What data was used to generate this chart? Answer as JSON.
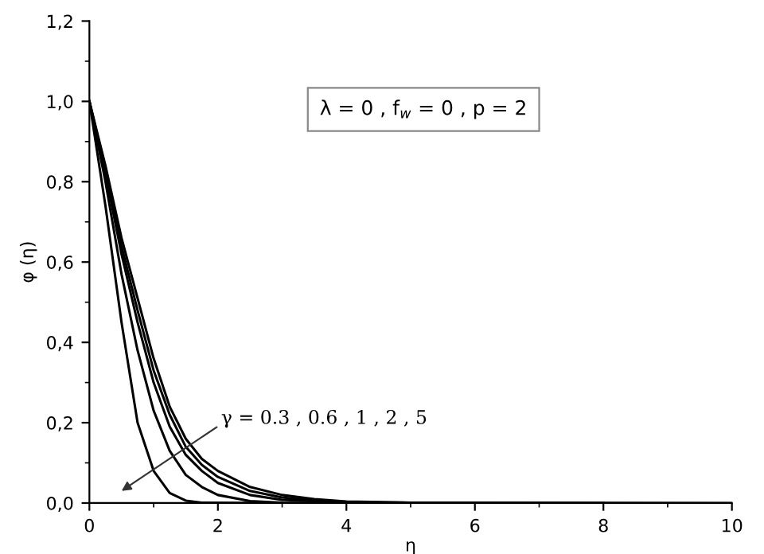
{
  "chart_data": {
    "type": "line",
    "xlabel": "η",
    "ylabel": "φ (η)",
    "series": [
      {
        "color": "#000000",
        "x": [
          0,
          0.25,
          0.5,
          0.75,
          1,
          1.25,
          1.5,
          1.75,
          2,
          2.5,
          3,
          3.5,
          4,
          5,
          10
        ],
        "values": [
          1,
          0.84,
          0.66,
          0.51,
          0.36,
          0.24,
          0.16,
          0.11,
          0.08,
          0.04,
          0.02,
          0.01,
          0.004,
          0.001,
          0
        ]
      },
      {
        "color": "#000000",
        "x": [
          0,
          0.25,
          0.5,
          0.75,
          1,
          1.25,
          1.5,
          1.75,
          2,
          2.5,
          3,
          3.5,
          4,
          5,
          8
        ],
        "values": [
          1,
          0.83,
          0.64,
          0.48,
          0.33,
          0.22,
          0.14,
          0.095,
          0.065,
          0.03,
          0.014,
          0.006,
          0.002,
          0.001,
          0
        ]
      },
      {
        "color": "#000000",
        "x": [
          0,
          0.25,
          0.5,
          0.75,
          1,
          1.25,
          1.5,
          1.75,
          2,
          2.5,
          3,
          4,
          6
        ],
        "values": [
          1,
          0.82,
          0.62,
          0.45,
          0.3,
          0.19,
          0.12,
          0.08,
          0.05,
          0.02,
          0.008,
          0.001,
          0
        ]
      },
      {
        "color": "#000000",
        "x": [
          0,
          0.25,
          0.5,
          0.75,
          1,
          1.25,
          1.5,
          1.75,
          2,
          2.5,
          3,
          4.5
        ],
        "values": [
          1,
          0.8,
          0.57,
          0.38,
          0.23,
          0.13,
          0.07,
          0.04,
          0.02,
          0.005,
          0.001,
          0
        ]
      },
      {
        "color": "#000000",
        "x": [
          0,
          0.25,
          0.5,
          0.75,
          1,
          1.25,
          1.5,
          1.75,
          3
        ],
        "values": [
          1,
          0.74,
          0.45,
          0.2,
          0.08,
          0.025,
          0.006,
          0.001,
          0
        ]
      }
    ],
    "xlim": [
      0,
      10
    ],
    "xticks": [
      0,
      2,
      4,
      6,
      8,
      10
    ],
    "ylim": [
      0,
      1.2
    ],
    "yticks": [
      {
        "value": 0,
        "label": "0,0"
      },
      {
        "value": 0.2,
        "label": "0,2"
      },
      {
        "value": 0.4,
        "label": "0,4"
      },
      {
        "value": 0.6,
        "label": "0,6"
      },
      {
        "value": 0.8,
        "label": "0,8"
      },
      {
        "value": 1.0,
        "label": "1,0"
      },
      {
        "value": 1.2,
        "label": "1,2"
      }
    ],
    "annotations": [
      "λ = 0 , f$_{w}$ = 0 , p = 2",
      "γ = 0.3 , 0.6 , 1 , 2 , 5"
    ],
    "line_style": "solid",
    "marker": "none",
    "grid": false,
    "legend": false
  }
}
